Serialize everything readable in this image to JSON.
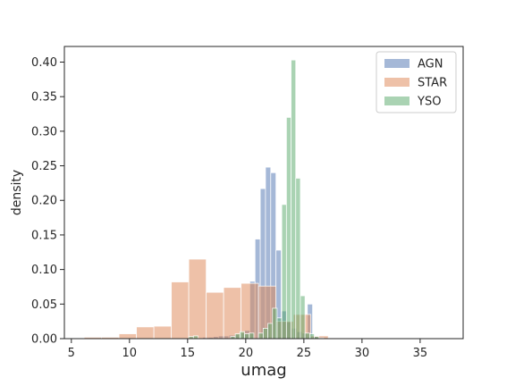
{
  "chart_data": {
    "type": "bar",
    "xlabel": "umag",
    "ylabel": "density",
    "xlim": [
      4.4,
      38.7
    ],
    "ylim": [
      0,
      0.4226
    ],
    "xticks": [
      5,
      10,
      15,
      20,
      25,
      30,
      35
    ],
    "yticks": [
      0.0,
      0.05,
      0.1,
      0.15,
      0.2,
      0.25,
      0.3,
      0.35,
      0.4
    ],
    "xtick_labels": [
      "5",
      "10",
      "15",
      "20",
      "25",
      "30",
      "35"
    ],
    "ytick_labels": [
      "0.00",
      "0.05",
      "0.10",
      "0.15",
      "0.20",
      "0.25",
      "0.30",
      "0.35",
      "0.40"
    ],
    "legend": {
      "placement": "top-right"
    },
    "grid": false,
    "series": [
      {
        "name": "AGN",
        "color": "#4c72b0",
        "bins": [
          [
            16.3,
            16.75,
            0.002
          ],
          [
            16.75,
            17.2,
            0.002
          ],
          [
            17.2,
            17.65,
            0.003
          ],
          [
            17.65,
            18.1,
            0.004
          ],
          [
            18.1,
            18.55,
            0.004
          ],
          [
            18.55,
            19.0,
            0.005
          ],
          [
            19.0,
            19.45,
            0.006
          ],
          [
            19.45,
            19.9,
            0.008
          ],
          [
            19.9,
            20.35,
            0.012
          ],
          [
            20.35,
            20.8,
            0.083
          ],
          [
            20.8,
            21.25,
            0.144
          ],
          [
            21.25,
            21.7,
            0.217
          ],
          [
            21.7,
            22.15,
            0.248
          ],
          [
            22.15,
            22.6,
            0.24
          ],
          [
            22.6,
            23.05,
            0.128
          ],
          [
            23.05,
            23.5,
            0.04
          ],
          [
            23.5,
            23.95,
            0.024
          ],
          [
            23.95,
            24.4,
            0.015
          ],
          [
            24.4,
            24.85,
            0.01
          ],
          [
            24.85,
            25.3,
            0.008
          ],
          [
            25.3,
            25.75,
            0.05
          ],
          [
            25.75,
            26.2,
            0.003
          ],
          [
            26.2,
            26.65,
            0.002
          ],
          [
            26.65,
            27.1,
            0.001
          ],
          [
            27.1,
            27.55,
            0.001
          ]
        ]
      },
      {
        "name": "STAR",
        "color": "#dd8452",
        "bins": [
          [
            6.1,
            7.6,
            0.002
          ],
          [
            7.6,
            9.1,
            0.002
          ],
          [
            9.1,
            10.6,
            0.007
          ],
          [
            10.6,
            12.1,
            0.017
          ],
          [
            12.1,
            13.6,
            0.018
          ],
          [
            13.6,
            15.1,
            0.082
          ],
          [
            15.1,
            16.6,
            0.115
          ],
          [
            16.6,
            18.1,
            0.067
          ],
          [
            18.1,
            19.6,
            0.074
          ],
          [
            19.6,
            21.1,
            0.08
          ],
          [
            21.1,
            22.6,
            0.076
          ],
          [
            22.6,
            24.1,
            0.025
          ],
          [
            24.1,
            25.6,
            0.035
          ],
          [
            25.6,
            27.1,
            0.004
          ],
          [
            27.1,
            28.6,
            0.001
          ],
          [
            28.6,
            30.1,
            0.001
          ],
          [
            30.1,
            31.6,
            0.0005
          ],
          [
            31.6,
            33.1,
            0.0005
          ],
          [
            33.1,
            34.6,
            0.0005
          ],
          [
            34.6,
            36.1,
            0.0005
          ],
          [
            36.1,
            37.6,
            0.0005
          ]
        ]
      },
      {
        "name": "YSO",
        "color": "#55a868",
        "bins": [
          [
            14.7,
            15.1,
            0.0
          ],
          [
            15.1,
            15.5,
            0.003
          ],
          [
            15.5,
            15.9,
            0.004
          ],
          [
            15.9,
            16.3,
            0.0
          ],
          [
            16.3,
            16.7,
            0.0
          ],
          [
            16.7,
            17.1,
            0.0
          ],
          [
            17.1,
            17.5,
            0.0
          ],
          [
            17.5,
            17.9,
            0.0
          ],
          [
            17.9,
            18.3,
            0.0
          ],
          [
            18.3,
            18.7,
            0.0
          ],
          [
            18.7,
            19.1,
            0.003
          ],
          [
            19.1,
            19.5,
            0.007
          ],
          [
            19.5,
            19.9,
            0.01
          ],
          [
            19.9,
            20.3,
            0.007
          ],
          [
            20.3,
            20.7,
            0.008
          ],
          [
            20.7,
            21.1,
            0.0
          ],
          [
            21.1,
            21.5,
            0.008
          ],
          [
            21.5,
            21.9,
            0.015
          ],
          [
            21.9,
            22.3,
            0.022
          ],
          [
            22.3,
            22.7,
            0.044
          ],
          [
            22.7,
            23.1,
            0.03
          ],
          [
            23.1,
            23.5,
            0.194
          ],
          [
            23.5,
            23.9,
            0.32
          ],
          [
            23.9,
            24.3,
            0.403
          ],
          [
            24.3,
            24.7,
            0.232
          ],
          [
            24.7,
            25.1,
            0.062
          ],
          [
            25.1,
            25.5,
            0.008
          ],
          [
            25.5,
            25.9,
            0.007
          ],
          [
            25.9,
            26.3,
            0.003
          ],
          [
            26.3,
            26.7,
            0.001
          ]
        ]
      }
    ]
  }
}
